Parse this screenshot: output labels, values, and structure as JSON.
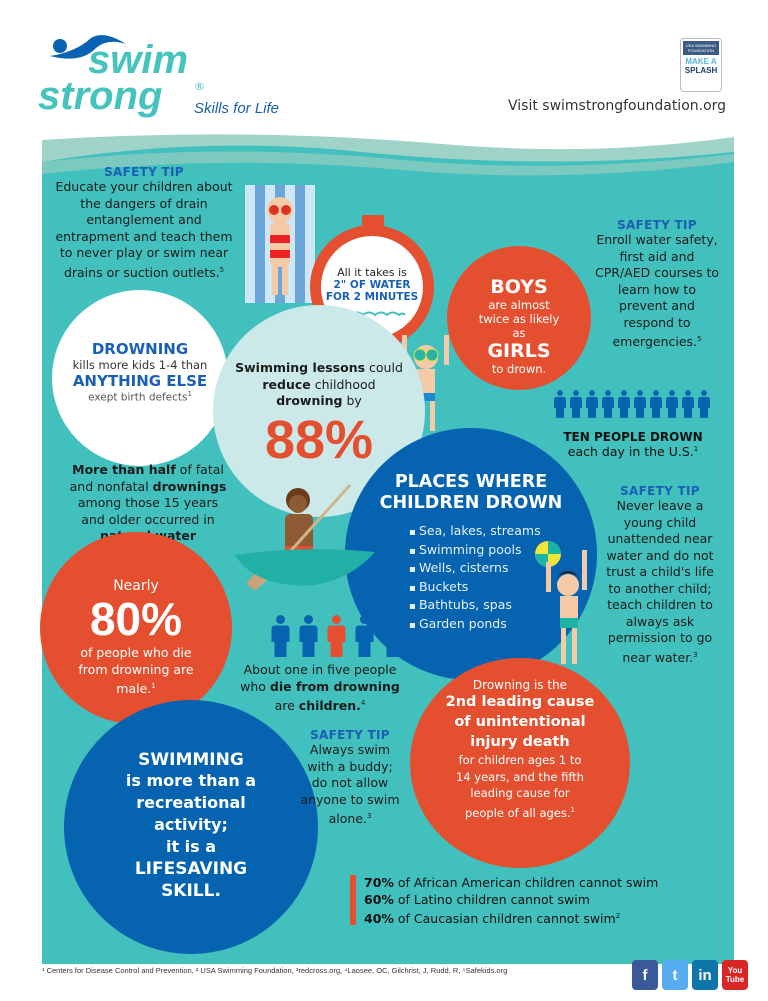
{
  "header": {
    "logo_word1": "swim",
    "logo_word2": "strong",
    "logo_registered": "®",
    "logo_tagline": "Skills for Life",
    "badge_org": "USA SWIMMING FOUNDATION",
    "badge_text1": "MAKE A",
    "badge_text2": "SPLASH",
    "visit": "Visit swimstrongfoundation.org"
  },
  "colors": {
    "teal": "#42c0bd",
    "orange": "#e4502f",
    "blue": "#0563b0",
    "heading_blue": "#1a5fb4",
    "light": "#cbe9e8"
  },
  "tip1": {
    "heading": "SAFETY TIP",
    "body": "Educate your children about the dangers of drain entanglement and entrapment and teach them to never play or swim near drains or suction outlets.",
    "sup": "5"
  },
  "stopwatch": {
    "line1": "All it takes is",
    "line2": "2\" OF WATER",
    "line3": "FOR 2 MINUTES"
  },
  "boys": {
    "big1": "BOYS",
    "mid": "are almost twice as likely as",
    "big2": "GIRLS",
    "end": "to drown."
  },
  "tip2": {
    "heading": "SAFETY TIP",
    "body": "Enroll water safety, first aid and CPR/AED courses to learn how to prevent and respond to emergencies.",
    "sup": "5"
  },
  "drowning": {
    "big1": "DROWNING",
    "mid": "kills more kids 1-4 than",
    "big2": "ANYTHING ELSE",
    "end": "exept birth defects",
    "sup": "1"
  },
  "lessons": {
    "segments": [
      {
        "t": "Swimming lessons",
        "b": true
      },
      {
        "t": " could ",
        "b": false
      },
      {
        "t": "reduce",
        "b": true
      },
      {
        "t": " childhood ",
        "b": false
      },
      {
        "t": "drowning",
        "b": true
      },
      {
        "t": " by",
        "b": false
      }
    ],
    "percent": "88%"
  },
  "ten": {
    "icon_count": 10,
    "bold": "TEN PEOPLE DROWN",
    "rest": "each day in the U.S.",
    "sup": "1"
  },
  "natural": {
    "segments": [
      {
        "t": "More than half",
        "b": true
      },
      {
        "t": " of fatal and nonfatal ",
        "b": false
      },
      {
        "t": "drownings",
        "b": true
      },
      {
        "t": " among those 15 years and older occurred in ",
        "b": false
      },
      {
        "t": "natural water settings.",
        "b": true
      }
    ]
  },
  "places": {
    "title1": "PLACES WHERE",
    "title2": "CHILDREN DROWN",
    "items": [
      "Sea, lakes, streams",
      "Swimming pools",
      "Wells, cisterns",
      "Buckets",
      "Bathtubs, spas",
      "Garden ponds"
    ]
  },
  "tip3": {
    "heading": "SAFETY TIP",
    "body": "Never leave a young child unattended near water and do not trust a child's life to another child; teach children to always ask permission to go near water.",
    "sup": "3"
  },
  "male": {
    "pre": "Nearly",
    "percent": "80%",
    "body": "of people who die from drowning are male.",
    "sup": "1"
  },
  "fifth": {
    "icon_count": 5,
    "highlight_index": 2,
    "segments": [
      {
        "t": "About one in five people who ",
        "b": false
      },
      {
        "t": "die from drowning",
        "b": true
      },
      {
        "t": " are ",
        "b": false
      },
      {
        "t": "children.",
        "b": true
      }
    ],
    "sup": "4"
  },
  "tip4": {
    "heading": "SAFETY TIP",
    "body": "Always swim with a buddy; do not allow anyone to swim alone.",
    "sup": "3"
  },
  "leading": {
    "pre": "Drowning is the",
    "bold": "2nd leading cause of unintentional injury death",
    "body": "for children ages 1 to 14 years, and the fifth leading cause for people of all ages.",
    "sup": "1"
  },
  "lifesaving": {
    "l1": "SWIMMING",
    "l2": "is more than a recreational activity;",
    "l3": "it is a",
    "l4": "LIFESAVING SKILL."
  },
  "stats": [
    {
      "pct": "70%",
      "text": " of African American children cannot swim"
    },
    {
      "pct": "60%",
      "text": " of Latino children cannot swim"
    },
    {
      "pct": "40%",
      "text": " of Caucasian children cannot swim",
      "sup": "2"
    }
  ],
  "footer": {
    "sources": "¹ Centers for Disease Control and Prevention, ² USA Swimming Foundation, ³redcross.org, ⁴Laosee, OC, Gilchrist, J, Rudd, R, ⁵Safekids.org",
    "social": [
      {
        "name": "facebook",
        "label": "f",
        "color": "#3b5998"
      },
      {
        "name": "twitter",
        "label": "t",
        "color": "#55acee"
      },
      {
        "name": "linkedin",
        "label": "in",
        "color": "#0e76a8"
      },
      {
        "name": "youtube",
        "label": "You Tube",
        "color": "#d82624"
      }
    ]
  }
}
